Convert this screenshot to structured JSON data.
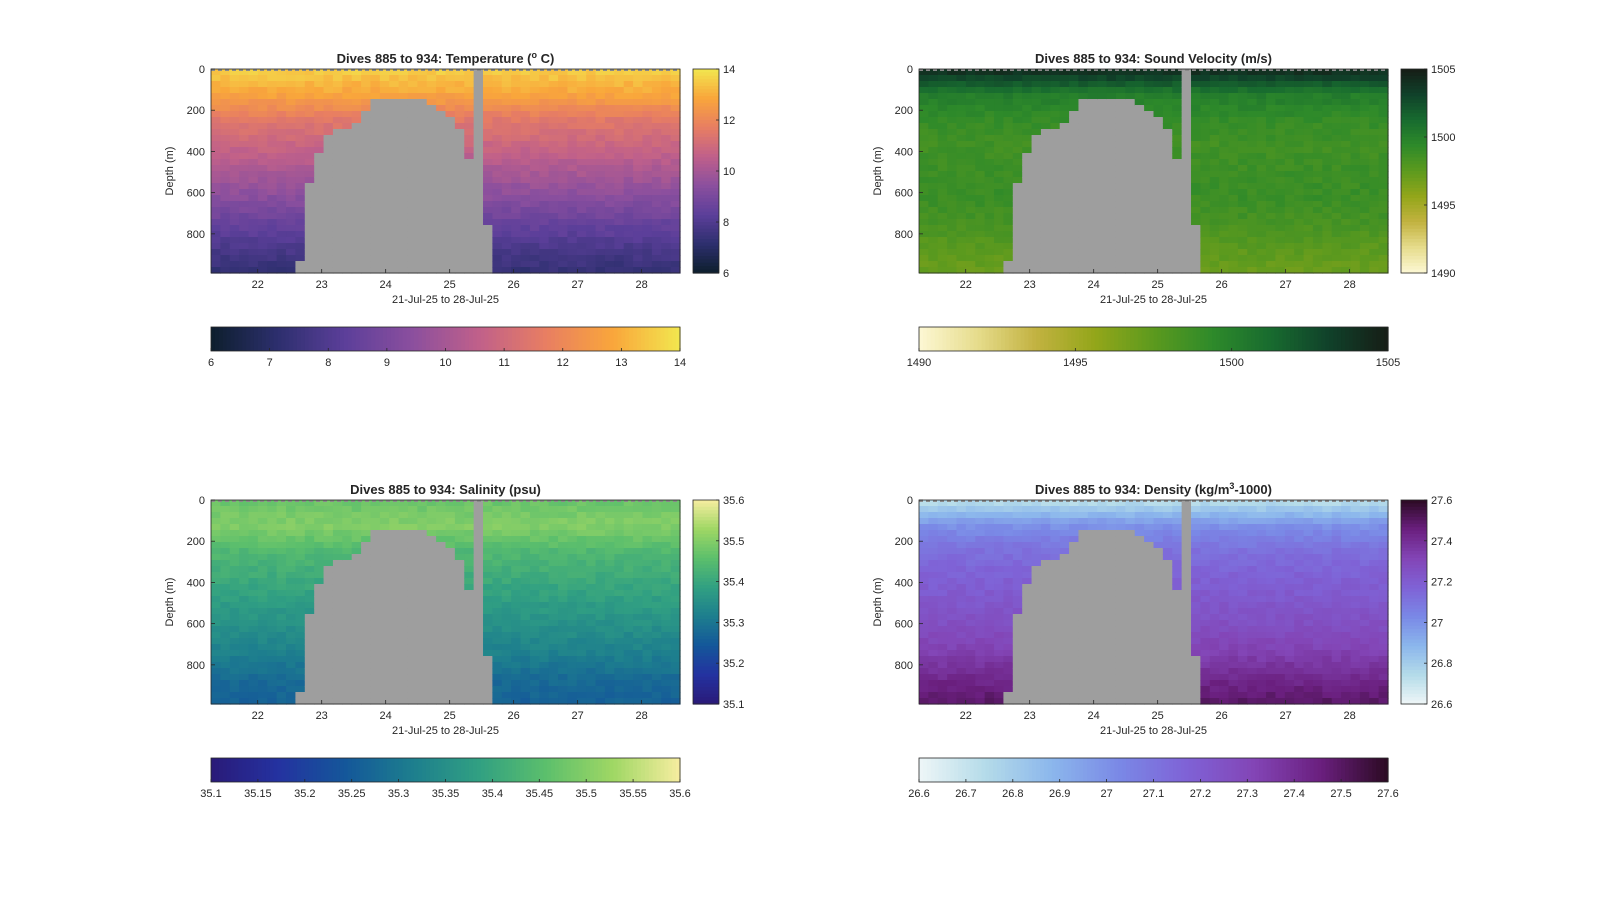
{
  "chart_data": [
    {
      "type": "heatmap",
      "title": {
        "main": "Dives 885 to 934: Temperature (",
        "sup": "o",
        "rest": " C)"
      },
      "xlabel": "21-Jul-25 to 28-Jul-25",
      "ylabel": "Depth (m)",
      "xlim": [
        21.27,
        28.6
      ],
      "ylim": [
        0,
        990
      ],
      "x_ticks": [
        "22",
        "23",
        "24",
        "25",
        "26",
        "27",
        "28"
      ],
      "y_ticks": [
        "0",
        "200",
        "400",
        "600",
        "800"
      ],
      "colormap": [
        "#0d1f2d",
        "#2d2f6e",
        "#5c3f9a",
        "#8b4f9e",
        "#c0608a",
        "#e87e62",
        "#f9a63b",
        "#f2e74f"
      ],
      "clim": [
        6,
        14
      ],
      "colorbar_right_ticks": [
        "6",
        "8",
        "10",
        "12",
        "14"
      ],
      "colorbar_bottom_ticks": [
        "6",
        "7",
        "8",
        "9",
        "10",
        "11",
        "12",
        "13",
        "14"
      ],
      "missing_color": "#9e9e9e",
      "values_top_to_bottom": [
        13.6,
        12.8,
        11.5,
        10.8,
        10.1,
        9.4,
        8.6,
        7.9,
        7.3
      ]
    },
    {
      "type": "heatmap",
      "title": {
        "main": "Dives 885 to 934: Sound Velocity (m/s)",
        "sup": "",
        "rest": ""
      },
      "xlabel": "21-Jul-25 to 28-Jul-25",
      "ylabel": "Depth (m)",
      "xlim": [
        21.27,
        28.6
      ],
      "ylim": [
        0,
        990
      ],
      "x_ticks": [
        "22",
        "23",
        "24",
        "25",
        "26",
        "27",
        "28"
      ],
      "y_ticks": [
        "0",
        "200",
        "400",
        "600",
        "800"
      ],
      "colormap": [
        "#fdf8d4",
        "#e6dc8c",
        "#c2b240",
        "#93a61a",
        "#5c9a1e",
        "#2e8a2a",
        "#186b2f",
        "#10412a",
        "#161d16"
      ],
      "clim": [
        1490,
        1505
      ],
      "colorbar_right_ticks": [
        "1490",
        "1495",
        "1500",
        "1505"
      ],
      "colorbar_bottom_ticks": [
        "1490",
        "1495",
        "1500",
        "1505"
      ],
      "missing_color": "#9e9e9e",
      "values_top_to_bottom": [
        1504.4,
        1500.2,
        1499.1,
        1498.6,
        1498.8,
        1498.9,
        1498.4,
        1497.6,
        1497.0
      ]
    },
    {
      "type": "heatmap",
      "title": {
        "main": "Dives 885 to 934: Salinity (psu)",
        "sup": "",
        "rest": ""
      },
      "xlabel": "21-Jul-25 to 28-Jul-25",
      "ylabel": "Depth (m)",
      "xlim": [
        21.27,
        28.6
      ],
      "ylim": [
        0,
        990
      ],
      "x_ticks": [
        "22",
        "23",
        "24",
        "25",
        "26",
        "27",
        "28"
      ],
      "y_ticks": [
        "0",
        "200",
        "400",
        "600",
        "800"
      ],
      "colormap": [
        "#2a1a78",
        "#2432a0",
        "#14579a",
        "#1d7e8e",
        "#31a082",
        "#5cbf6c",
        "#9fd764",
        "#f7eda0"
      ],
      "clim": [
        35.1,
        35.6
      ],
      "colorbar_right_ticks": [
        "35.1",
        "35.2",
        "35.3",
        "35.4",
        "35.5",
        "35.6"
      ],
      "colorbar_bottom_ticks": [
        "35.1",
        "35.15",
        "35.2",
        "35.25",
        "35.3",
        "35.35",
        "35.4",
        "35.45",
        "35.5",
        "35.55",
        "35.6"
      ],
      "missing_color": "#9e9e9e",
      "values_top_to_bottom": [
        35.47,
        35.5,
        35.44,
        35.41,
        35.38,
        35.35,
        35.32,
        35.28,
        35.26
      ]
    },
    {
      "type": "heatmap",
      "title": {
        "main": "Dives 885 to 934: Density (kg/m",
        "sup": "3",
        "rest": "-1000)"
      },
      "xlabel": "21-Jul-25 to 28-Jul-25",
      "ylabel": "Depth (m)",
      "xlim": [
        21.27,
        28.6
      ],
      "ylim": [
        0,
        990
      ],
      "x_ticks": [
        "22",
        "23",
        "24",
        "25",
        "26",
        "27",
        "28"
      ],
      "y_ticks": [
        "0",
        "200",
        "400",
        "600",
        "800"
      ],
      "colormap": [
        "#eef6f7",
        "#b4dbe9",
        "#8bb6ec",
        "#7a88e6",
        "#7f62d6",
        "#8345b6",
        "#6a1f7e",
        "#2b0a22"
      ],
      "clim": [
        26.6,
        27.6
      ],
      "colorbar_right_ticks": [
        "26.6",
        "26.8",
        "27",
        "27.2",
        "27.4",
        "27.6"
      ],
      "colorbar_bottom_ticks": [
        "26.6",
        "26.7",
        "26.8",
        "26.9",
        "27",
        "27.1",
        "27.2",
        "27.3",
        "27.4",
        "27.5",
        "27.6"
      ],
      "missing_color": "#9e9e9e",
      "values_top_to_bottom": [
        26.72,
        27.0,
        27.12,
        27.18,
        27.22,
        27.27,
        27.33,
        27.42,
        27.5
      ]
    }
  ]
}
